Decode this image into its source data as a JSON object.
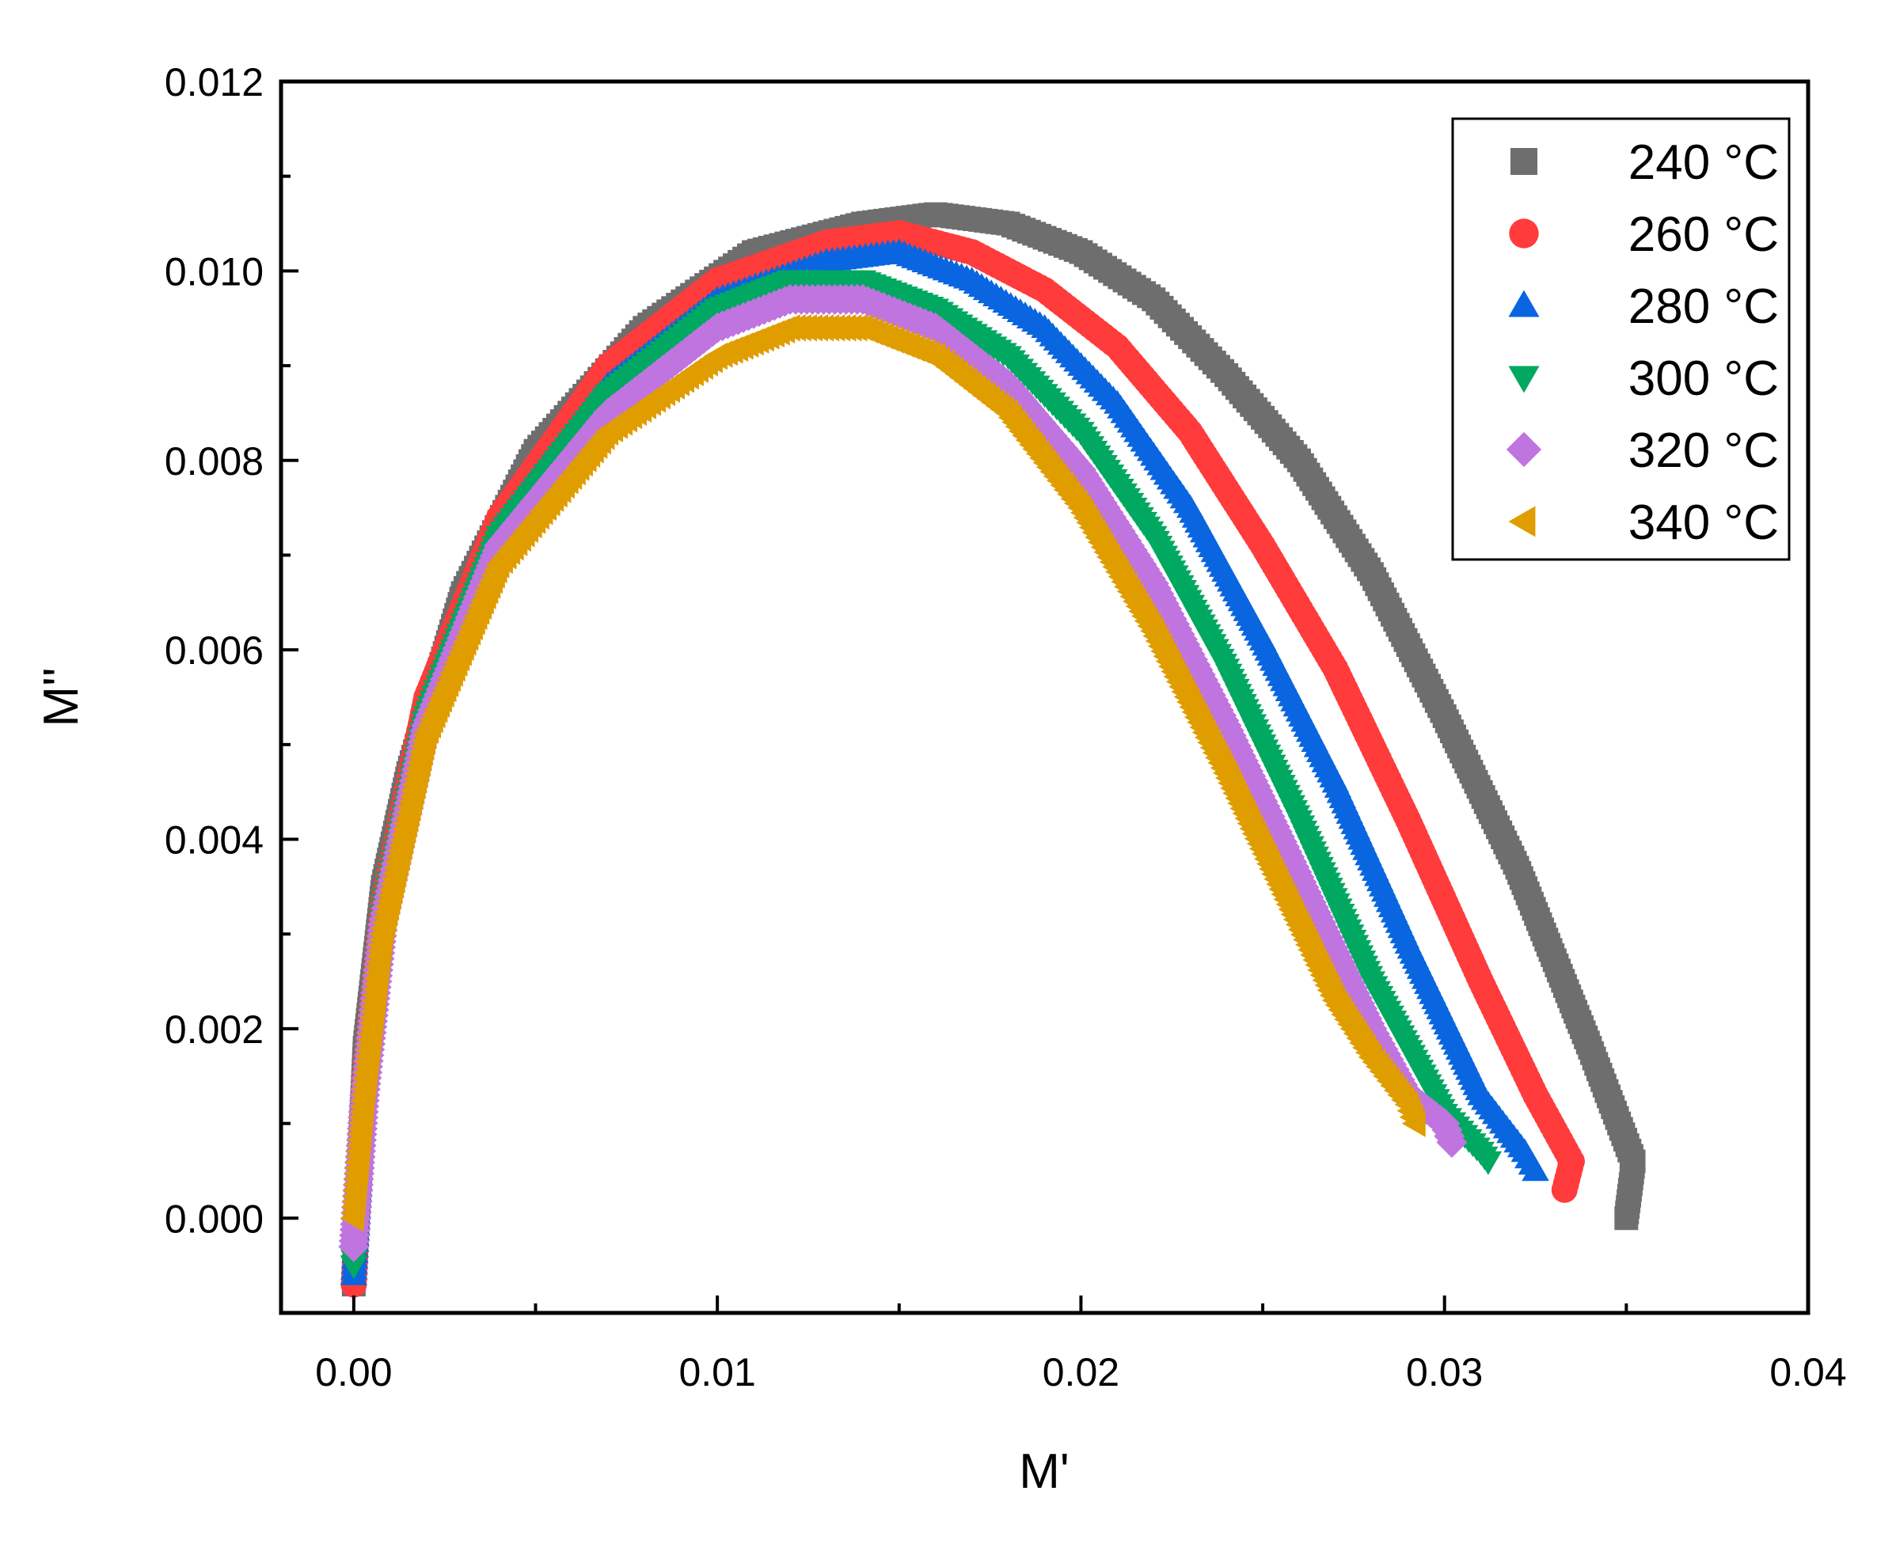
{
  "chart_data": {
    "type": "scatter",
    "title": "",
    "xlabel": "M'",
    "ylabel": "M''",
    "xlim": [
      -0.002,
      0.04
    ],
    "ylim": [
      -0.001,
      0.012
    ],
    "x_ticks": [
      0.0,
      0.01,
      0.02,
      0.03,
      0.04
    ],
    "x_tick_labels": [
      "0.00",
      "0.01",
      "0.02",
      "0.03",
      "0.04"
    ],
    "y_ticks": [
      0.0,
      0.002,
      0.004,
      0.006,
      0.008,
      0.01,
      0.012
    ],
    "y_tick_labels": [
      "0.000",
      "0.002",
      "0.004",
      "0.006",
      "0.008",
      "0.010",
      "0.012"
    ],
    "grid": false,
    "legend_position": "top-right",
    "series": [
      {
        "name": "240 °C",
        "marker": "square",
        "color": "#6e6e6e",
        "x": [
          0.0,
          0.0003,
          0.0008,
          0.0015,
          0.003,
          0.005,
          0.008,
          0.011,
          0.014,
          0.016,
          0.018,
          0.02,
          0.022,
          0.024,
          0.026,
          0.028,
          0.03,
          0.032,
          0.034,
          0.0352,
          0.035
        ],
        "y": [
          -0.0007,
          0.0018,
          0.0035,
          0.0047,
          0.0066,
          0.0081,
          0.0094,
          0.0102,
          0.0105,
          0.0106,
          0.0105,
          0.0102,
          0.0097,
          0.0089,
          0.008,
          0.0068,
          0.0053,
          0.0037,
          0.0018,
          0.0006,
          0.0
        ]
      },
      {
        "name": "260 °C",
        "marker": "circle",
        "color": "#ff3b3b",
        "x": [
          0.0,
          0.0003,
          0.0008,
          0.002,
          0.004,
          0.007,
          0.01,
          0.013,
          0.015,
          0.017,
          0.019,
          0.021,
          0.023,
          0.025,
          0.027,
          0.029,
          0.031,
          0.0325,
          0.0335,
          0.0333
        ],
        "y": [
          -0.0007,
          0.0015,
          0.0033,
          0.0055,
          0.0074,
          0.009,
          0.0099,
          0.0103,
          0.0104,
          0.0102,
          0.0098,
          0.0092,
          0.0083,
          0.0071,
          0.0058,
          0.0042,
          0.0025,
          0.0013,
          0.0006,
          0.0003
        ]
      },
      {
        "name": "280 °C",
        "marker": "triangle-up",
        "color": "#0a66e0",
        "x": [
          0.0,
          0.0003,
          0.0008,
          0.002,
          0.004,
          0.007,
          0.01,
          0.013,
          0.015,
          0.017,
          0.019,
          0.021,
          0.023,
          0.025,
          0.027,
          0.029,
          0.031,
          0.0322,
          0.0325
        ],
        "y": [
          -0.0006,
          0.0014,
          0.0032,
          0.0054,
          0.0073,
          0.0088,
          0.0097,
          0.0101,
          0.0102,
          0.0099,
          0.0094,
          0.0086,
          0.0075,
          0.0061,
          0.0046,
          0.0029,
          0.0013,
          0.0007,
          0.0005
        ]
      },
      {
        "name": "300 °C",
        "marker": "triangle-down",
        "color": "#00a861",
        "x": [
          0.0,
          0.0003,
          0.0008,
          0.002,
          0.004,
          0.007,
          0.01,
          0.012,
          0.014,
          0.016,
          0.018,
          0.02,
          0.022,
          0.024,
          0.026,
          0.028,
          0.03,
          0.031,
          0.0312
        ],
        "y": [
          -0.0005,
          0.0014,
          0.0032,
          0.0053,
          0.0072,
          0.0087,
          0.0096,
          0.0099,
          0.0099,
          0.0096,
          0.0091,
          0.0083,
          0.0072,
          0.0058,
          0.0042,
          0.0025,
          0.0011,
          0.0007,
          0.0006
        ]
      },
      {
        "name": "320 °C",
        "marker": "diamond",
        "color": "#c074e0",
        "x": [
          0.0,
          0.0003,
          0.0008,
          0.002,
          0.004,
          0.007,
          0.01,
          0.012,
          0.014,
          0.016,
          0.018,
          0.02,
          0.022,
          0.024,
          0.026,
          0.028,
          0.029,
          0.03,
          0.0302
        ],
        "y": [
          -0.0003,
          0.0013,
          0.0031,
          0.0052,
          0.0071,
          0.0085,
          0.0094,
          0.0097,
          0.0097,
          0.0094,
          0.0088,
          0.0079,
          0.0067,
          0.0052,
          0.0036,
          0.002,
          0.0013,
          0.001,
          0.0008
        ]
      },
      {
        "name": "340 °C",
        "marker": "triangle-left",
        "color": "#e09d00",
        "x": [
          0.0,
          0.0003,
          0.0008,
          0.002,
          0.004,
          0.007,
          0.01,
          0.012,
          0.014,
          0.016,
          0.018,
          0.02,
          0.022,
          0.024,
          0.026,
          0.027,
          0.028,
          0.029,
          0.0292
        ],
        "y": [
          0.0,
          0.0013,
          0.003,
          0.0051,
          0.0069,
          0.0083,
          0.0091,
          0.0094,
          0.0094,
          0.0091,
          0.0085,
          0.0075,
          0.0062,
          0.0047,
          0.0031,
          0.0023,
          0.0017,
          0.0012,
          0.001
        ]
      }
    ]
  }
}
